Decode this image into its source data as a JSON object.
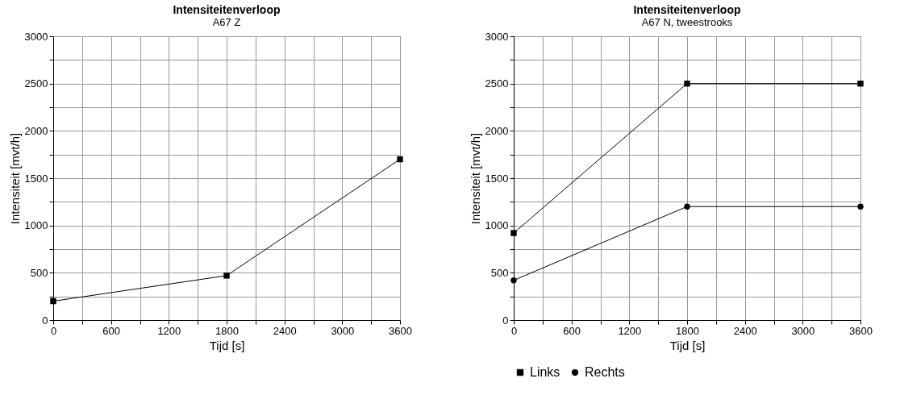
{
  "chart_data": [
    {
      "type": "line",
      "title": "Intensiteitenverloop",
      "subtitle": "A67 Z",
      "xlabel": "Tijd [s]",
      "ylabel": "Intensiteit [mvt/h]",
      "x": [
        0,
        1800,
        3600
      ],
      "series": [
        {
          "color": "#000000",
          "marker": "square",
          "values": [
            200,
            470,
            1700
          ]
        }
      ],
      "xlim": [
        0,
        3600
      ],
      "xticks": [
        0,
        {
          "value": 300,
          "label": null
        },
        600,
        {
          "value": 900,
          "label": null
        },
        1200,
        {
          "value": 1500,
          "label": null
        },
        1800,
        {
          "value": 2100,
          "label": null
        },
        2400,
        {
          "value": 2700,
          "label": null
        },
        3000,
        {
          "value": 3300,
          "label": null
        },
        3600
      ],
      "ylim": [
        0,
        3000
      ],
      "yticks": [
        0,
        {
          "value": 250,
          "label": null
        },
        500,
        {
          "value": 750,
          "label": null
        },
        1000,
        {
          "value": 1250,
          "label": null
        },
        1500,
        {
          "value": 1750,
          "label": null
        },
        2000,
        {
          "value": 2250,
          "label": null
        },
        2500,
        {
          "value": 2750,
          "label": null
        },
        3000
      ],
      "grid": true,
      "line_style": "solid"
    },
    {
      "type": "line",
      "title": "Intensiteitenverloop",
      "subtitle": "A67 N, tweestrooks",
      "xlabel": "Tijd [s]",
      "ylabel": "Intensiteit [mvt/h]",
      "x": [
        0,
        1800,
        3600
      ],
      "series": [
        {
          "name": "Links",
          "color": "#000000",
          "marker": "square",
          "values": [
            920,
            2500,
            2500
          ]
        },
        {
          "name": "Rechts",
          "color": "#000000",
          "marker": "circle",
          "values": [
            420,
            1200,
            1200
          ]
        }
      ],
      "xlim": [
        0,
        3600
      ],
      "xticks": [
        0,
        {
          "value": 300,
          "label": null
        },
        600,
        {
          "value": 900,
          "label": null
        },
        1200,
        {
          "value": 1500,
          "label": null
        },
        1800,
        {
          "value": 2100,
          "label": null
        },
        2400,
        {
          "value": 2700,
          "label": null
        },
        3000,
        {
          "value": 3300,
          "label": null
        },
        3600
      ],
      "ylim": [
        0,
        3000
      ],
      "yticks": [
        0,
        {
          "value": 250,
          "label": null
        },
        500,
        {
          "value": 750,
          "label": null
        },
        1000,
        {
          "value": 1250,
          "label": null
        },
        1500,
        {
          "value": 1750,
          "label": null
        },
        2000,
        {
          "value": 2250,
          "label": null
        },
        2500,
        {
          "value": 2750,
          "label": null
        },
        3000
      ],
      "grid": true,
      "legend": "bottom",
      "line_style": "solid"
    }
  ]
}
